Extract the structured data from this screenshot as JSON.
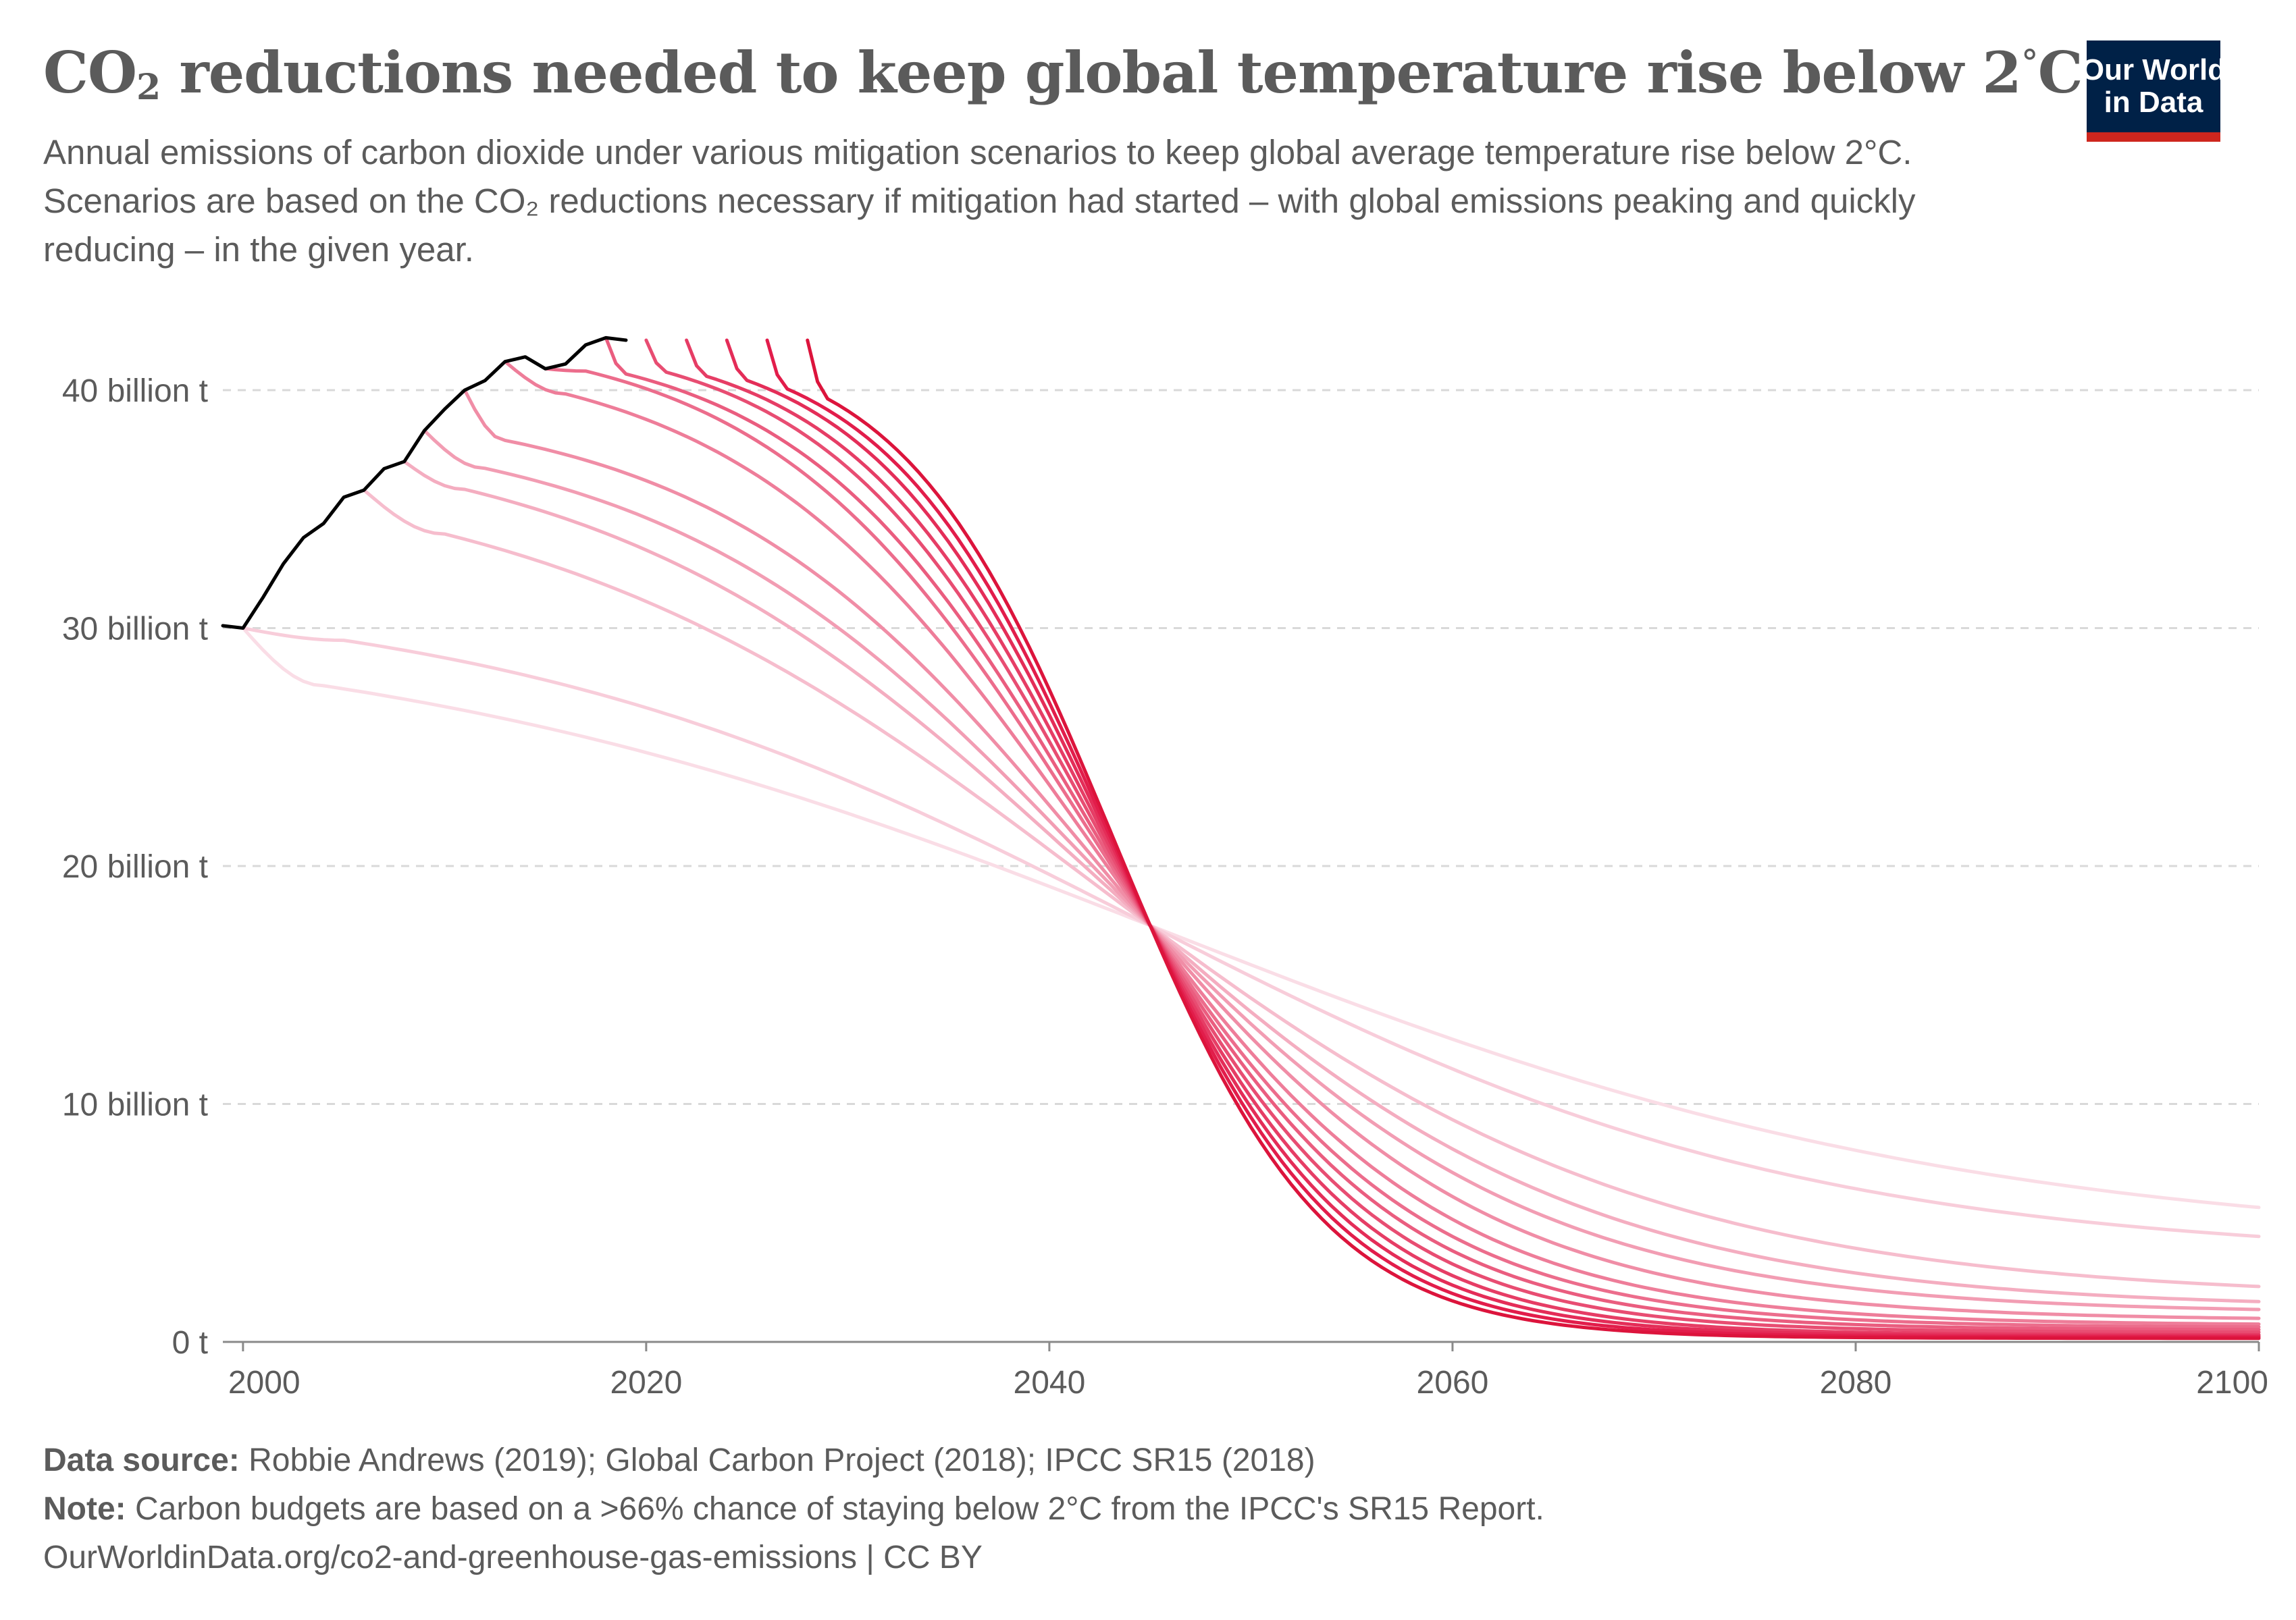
{
  "header": {
    "title_main": "CO",
    "title_sub": "2",
    "title_rest": " reductions needed to keep global temperature rise below 2",
    "title_deg": "°",
    "title_end": "C",
    "subtitle": "Annual emissions of carbon dioxide under various mitigation scenarios to keep global average temperature rise below 2°C. Scenarios are based on the CO₂ reductions necessary if mitigation had started – with global emissions peaking and quickly reducing – in the given year."
  },
  "logo": {
    "line1": "Our World",
    "line2": "in Data",
    "bg_color": "#002147",
    "accent_color": "#ce261e"
  },
  "footer": {
    "source_label": "Data source:",
    "source_text": " Robbie Andrews (2019); Global Carbon Project (2018); IPCC SR15 (2018)",
    "note_label": "Note:",
    "note_text": " Carbon budgets are based on a >66% chance of staying below 2°C from the IPCC's SR15 Report.",
    "url": "OurWorldinData.org/co2-and-greenhouse-gas-emissions | CC BY"
  },
  "chart_data": {
    "type": "line",
    "title": "CO₂ reductions needed to keep global temperature rise below 2°C",
    "xlim": [
      1999,
      2100
    ],
    "ylim": [
      0,
      42
    ],
    "x_ticks": [
      2000,
      2020,
      2040,
      2060,
      2080,
      2100
    ],
    "x_tick_labels": [
      "2000",
      "2020",
      "2040",
      "2060",
      "2080",
      "2100"
    ],
    "y_ticks": [
      0,
      10,
      20,
      30,
      40
    ],
    "y_tick_labels": [
      "0 t",
      "10 billion t",
      "20 billion t",
      "30 billion t",
      "40 billion t"
    ],
    "grid": "horizontal dashed",
    "historical": {
      "color": "#000000",
      "x": [
        1999,
        2000,
        2001,
        2002,
        2003,
        2004,
        2005,
        2006,
        2007,
        2008,
        2009,
        2010,
        2011,
        2012,
        2013,
        2014,
        2015,
        2016,
        2017,
        2018,
        2019
      ],
      "y": [
        30.1,
        30.0,
        31.3,
        32.7,
        33.8,
        34.4,
        35.5,
        35.8,
        36.7,
        37.0,
        38.3,
        39.2,
        40.0,
        40.4,
        41.2,
        41.4,
        40.9,
        41.1,
        41.9,
        42.2,
        42.1
      ]
    },
    "scenarios": [
      {
        "start": 2000,
        "peak_year": 2004,
        "peak": 30.5,
        "end_2100": 4.0,
        "color": "#fadde6"
      },
      {
        "start": 2000,
        "peak_year": 2005,
        "peak": 31.8,
        "end_2100": 3.5,
        "color": "#f8cdda"
      },
      {
        "start": 2006,
        "peak_year": 2010,
        "peak": 37.2,
        "end_2100": 1.8,
        "color": "#f6bdcd"
      },
      {
        "start": 2008,
        "peak_year": 2011,
        "peak": 38.5,
        "end_2100": 1.4,
        "color": "#f4adc0"
      },
      {
        "start": 2009,
        "peak_year": 2012,
        "peak": 38.8,
        "end_2100": 1.2,
        "color": "#f29db3"
      },
      {
        "start": 2011,
        "peak_year": 2013,
        "peak": 39.6,
        "end_2100": 0.9,
        "color": "#f08da6"
      },
      {
        "start": 2013,
        "peak_year": 2016,
        "peak": 41.8,
        "end_2100": 0.7,
        "color": "#ee7d99"
      },
      {
        "start": 2015,
        "peak_year": 2017,
        "peak": 42.5,
        "end_2100": 0.6,
        "color": "#ec6d8c"
      },
      {
        "start": 2018,
        "peak_year": 2019,
        "peak": 42.3,
        "end_2100": 0.5,
        "color": "#ea5d7f"
      },
      {
        "start": 2020,
        "peak_year": 2021,
        "peak": 42.4,
        "end_2100": 0.4,
        "color": "#e84d72"
      },
      {
        "start": 2022,
        "peak_year": 2023,
        "peak": 42.3,
        "end_2100": 0.3,
        "color": "#e63d65"
      },
      {
        "start": 2024,
        "peak_year": 2025,
        "peak": 42.3,
        "end_2100": 0.25,
        "color": "#e42d58"
      },
      {
        "start": 2026,
        "peak_year": 2027,
        "peak": 42.2,
        "end_2100": 0.2,
        "color": "#e21d4b"
      },
      {
        "start": 2028,
        "peak_year": 2029,
        "peak": 42.2,
        "end_2100": 0.15,
        "color": "#dc143c"
      }
    ],
    "crossover": {
      "x": 2045,
      "y": 17.5
    }
  }
}
